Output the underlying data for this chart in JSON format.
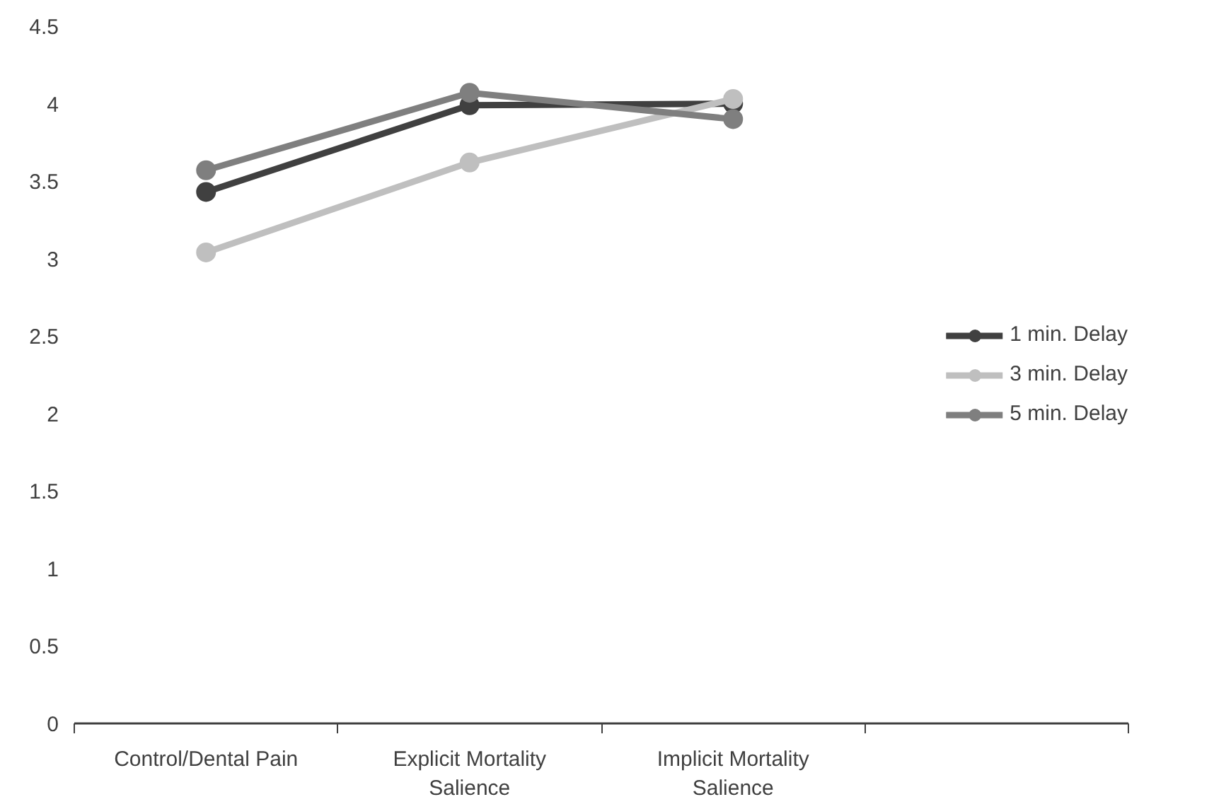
{
  "chart_data": {
    "type": "line",
    "categories": [
      "Control/Dental Pain",
      "Explicit Mortality Salience",
      "Implicit Mortality Salience",
      null
    ],
    "series": [
      {
        "name": "1 min. Delay",
        "color": "#404040",
        "values": [
          3.43,
          3.99,
          4.0,
          null
        ]
      },
      {
        "name": "3 min. Delay",
        "color": "#bfbfbf",
        "values": [
          3.04,
          3.62,
          4.03,
          null
        ]
      },
      {
        "name": "5 min. Delay",
        "color": "#7f7f7f",
        "values": [
          3.57,
          4.07,
          3.9,
          null
        ]
      }
    ],
    "ylim": [
      0,
      4.5
    ],
    "yticks": [
      0,
      0.5,
      1,
      1.5,
      2,
      2.5,
      3,
      3.5,
      4,
      4.5
    ],
    "grid": false,
    "legend": "right",
    "marker": "circle",
    "line_style": "solid"
  }
}
